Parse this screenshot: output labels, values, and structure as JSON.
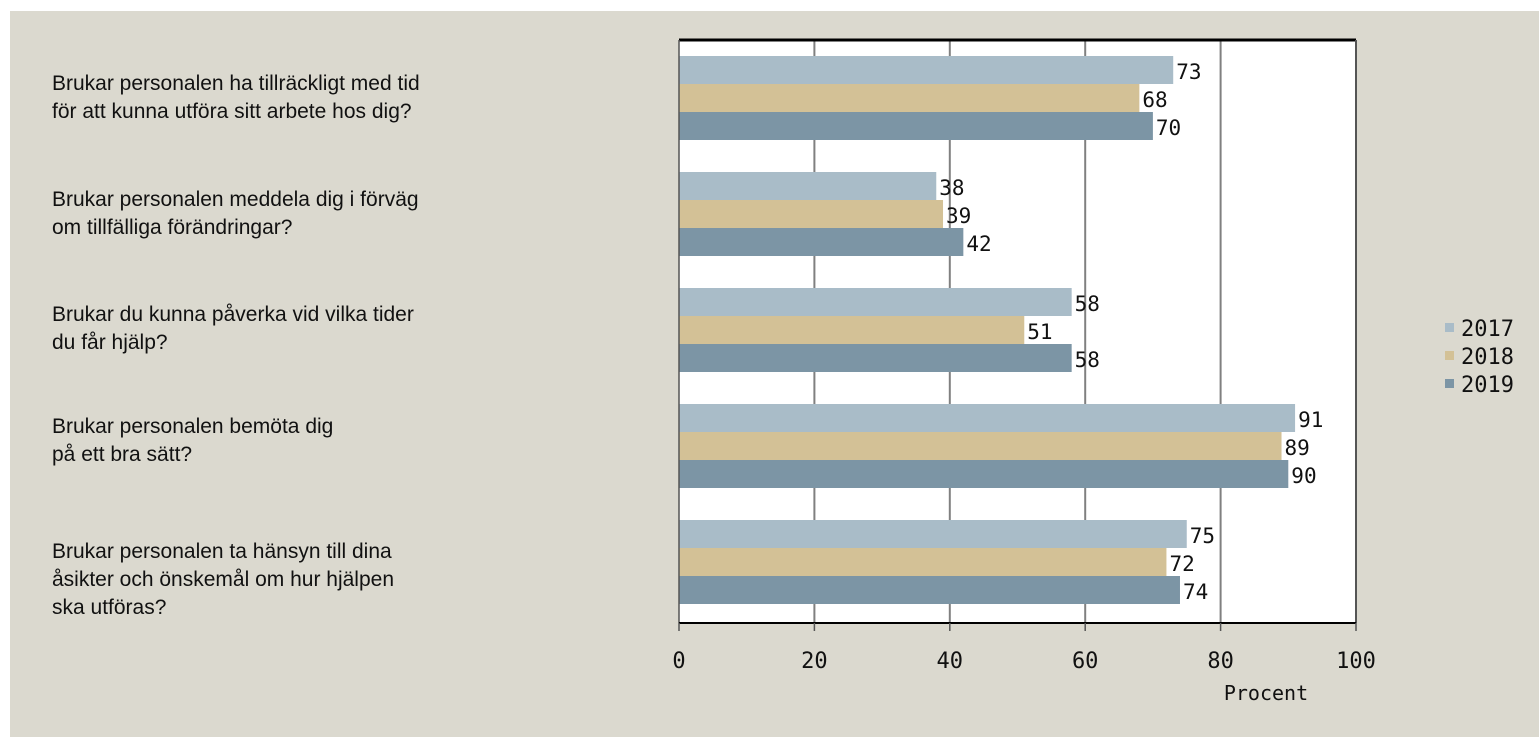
{
  "colors": {
    "background": "#dbd9cf",
    "plot_background": "#ffffff",
    "series": [
      "#a9bcc8",
      "#d3c196",
      "#7c95a5"
    ]
  },
  "chart_data": {
    "type": "bar",
    "orientation": "horizontal",
    "categories": [
      "Brukar personalen ha tillräckligt med tid\nför att kunna utföra sitt arbete hos dig?",
      "Brukar personalen meddela dig i förväg\nom tillfälliga förändringar?",
      "Brukar du kunna påverka vid vilka tider\ndu får hjälp?",
      "Brukar personalen bemöta dig\npå ett bra sätt?",
      "Brukar personalen ta hänsyn till dina\nåsikter och önskemål om hur hjälpen\nska utföras?"
    ],
    "series": [
      {
        "name": "2017",
        "values": [
          73,
          38,
          58,
          91,
          75
        ]
      },
      {
        "name": "2018",
        "values": [
          68,
          39,
          51,
          89,
          72
        ]
      },
      {
        "name": "2019",
        "values": [
          70,
          42,
          58,
          90,
          74
        ]
      }
    ],
    "x_ticks": [
      "0",
      "20",
      "40",
      "60",
      "80",
      "100"
    ],
    "xlim": [
      0,
      100
    ],
    "xlabel": "Procent",
    "grid": "vertical",
    "legend": "right"
  }
}
